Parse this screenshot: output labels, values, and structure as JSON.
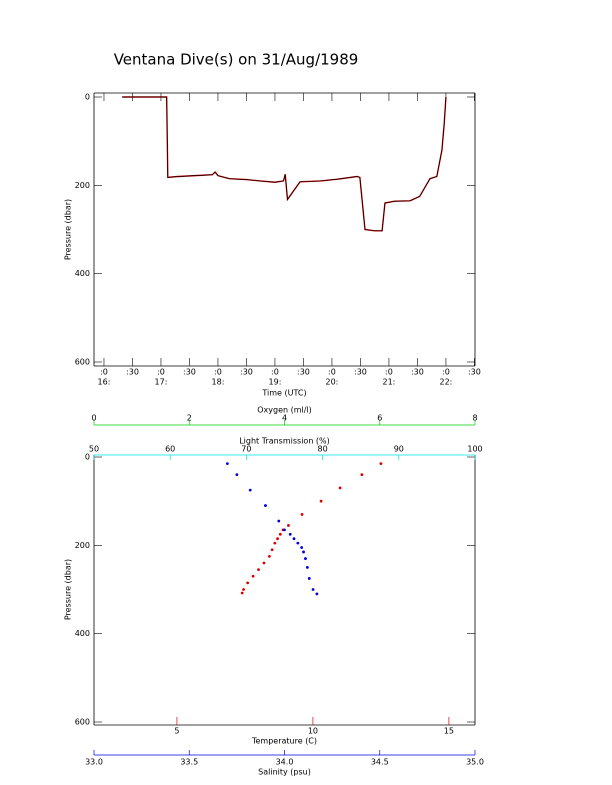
{
  "title": "Ventana Dive(s) on 31/Aug/1989",
  "chart_data": [
    {
      "type": "line",
      "xlabel": "Time (UTC)",
      "ylabel": "Pressure (dbar)",
      "xlim": [
        15.825,
        22.51
      ],
      "ylim": [
        0,
        600
      ],
      "y_inverted": true,
      "xticks": [
        {
          "value": 16,
          "label": ":0"
        },
        {
          "value": 16.5,
          "label": ":30"
        },
        {
          "value": 17,
          "label": ":0"
        },
        {
          "value": 17.5,
          "label": ":30"
        },
        {
          "value": 18,
          "label": ":0"
        },
        {
          "value": 18.5,
          "label": ":30"
        },
        {
          "value": 19,
          "label": ":0"
        },
        {
          "value": 19.5,
          "label": ":30"
        },
        {
          "value": 20,
          "label": ":0"
        },
        {
          "value": 20.5,
          "label": ":30"
        },
        {
          "value": 21,
          "label": ":0"
        },
        {
          "value": 21.5,
          "label": ":30"
        },
        {
          "value": 22,
          "label": ":0"
        },
        {
          "value": 22.5,
          "label": ":30"
        }
      ],
      "xticks_hours": [
        {
          "value": 16,
          "label": "16:"
        },
        {
          "value": 17,
          "label": "17:"
        },
        {
          "value": 18,
          "label": "18:"
        },
        {
          "value": 19,
          "label": "19:"
        },
        {
          "value": 20,
          "label": "20:"
        },
        {
          "value": 21,
          "label": "21:"
        },
        {
          "value": 22,
          "label": "22:"
        }
      ],
      "yticks": [
        0,
        200,
        400,
        600
      ],
      "series": [
        {
          "color": "#000000",
          "marker_color": "#dd0000",
          "x": [
            16.32,
            16.6,
            16.9,
            17.1,
            17.12,
            17.3,
            17.6,
            17.9,
            17.95,
            18.0,
            18.2,
            18.5,
            18.74,
            19.0,
            19.15,
            19.18,
            19.22,
            19.44,
            19.8,
            20.1,
            20.44,
            20.49,
            20.58,
            20.75,
            20.88,
            20.93,
            21.1,
            21.37,
            21.54,
            21.72,
            21.84,
            21.93,
            21.97,
            22.0
          ],
          "y": [
            0,
            0,
            0,
            0,
            182,
            180,
            178,
            176,
            170,
            178,
            185,
            187,
            190,
            193,
            190,
            175,
            232,
            192,
            190,
            186,
            180,
            182,
            300,
            303,
            303,
            240,
            236,
            235,
            225,
            185,
            180,
            120,
            60,
            0
          ]
        }
      ]
    },
    {
      "type": "scatter",
      "ylabel": "Pressure (dbar)",
      "ylim": [
        0,
        600
      ],
      "y_inverted": true,
      "yticks": [
        0,
        200,
        400,
        600
      ],
      "x_axes": [
        {
          "label": "Oxygen (ml/l)",
          "color": "#00cc00",
          "xlim": [
            0,
            8
          ],
          "xticks": [
            0,
            2,
            4,
            6,
            8
          ]
        },
        {
          "label": "Light Transmission (%)",
          "color": "#00e0e0",
          "xlim": [
            50,
            100
          ],
          "xticks": [
            50,
            60,
            70,
            80,
            90,
            100
          ]
        },
        {
          "label": "Temperature (C)",
          "color": "#dd0000",
          "xlim": [
            1.95,
            15.96
          ],
          "xticks": [
            5,
            10,
            15
          ]
        },
        {
          "label": "Salinity (psu)",
          "color": "#0000dd",
          "xlim": [
            33,
            35
          ],
          "xticks": [
            {
              "value": 33,
              "label": "33.0"
            },
            33.5,
            {
              "value": 34,
              "label": "34.0"
            },
            34.5,
            {
              "value": 35,
              "label": "35.0"
            }
          ]
        }
      ],
      "series": [
        {
          "xaxis": 2,
          "color": "#dd0000",
          "x": [
            12.5,
            11.8,
            11.0,
            10.3,
            9.6,
            9.1,
            8.9,
            8.8,
            8.7,
            8.6,
            8.5,
            8.4,
            8.2,
            8.0,
            7.8,
            7.6,
            7.45,
            7.4
          ],
          "y": [
            15,
            40,
            70,
            100,
            130,
            155,
            165,
            175,
            185,
            195,
            210,
            225,
            240,
            255,
            270,
            285,
            300,
            308
          ]
        },
        {
          "xaxis": 3,
          "color": "#0000dd",
          "x": [
            33.7,
            33.75,
            33.82,
            33.9,
            33.97,
            34.0,
            34.03,
            34.05,
            34.07,
            34.09,
            34.1,
            34.11,
            34.12,
            34.13,
            34.15,
            34.17
          ],
          "y": [
            15,
            40,
            75,
            110,
            145,
            165,
            175,
            185,
            195,
            205,
            215,
            230,
            250,
            275,
            300,
            310
          ]
        }
      ]
    }
  ]
}
